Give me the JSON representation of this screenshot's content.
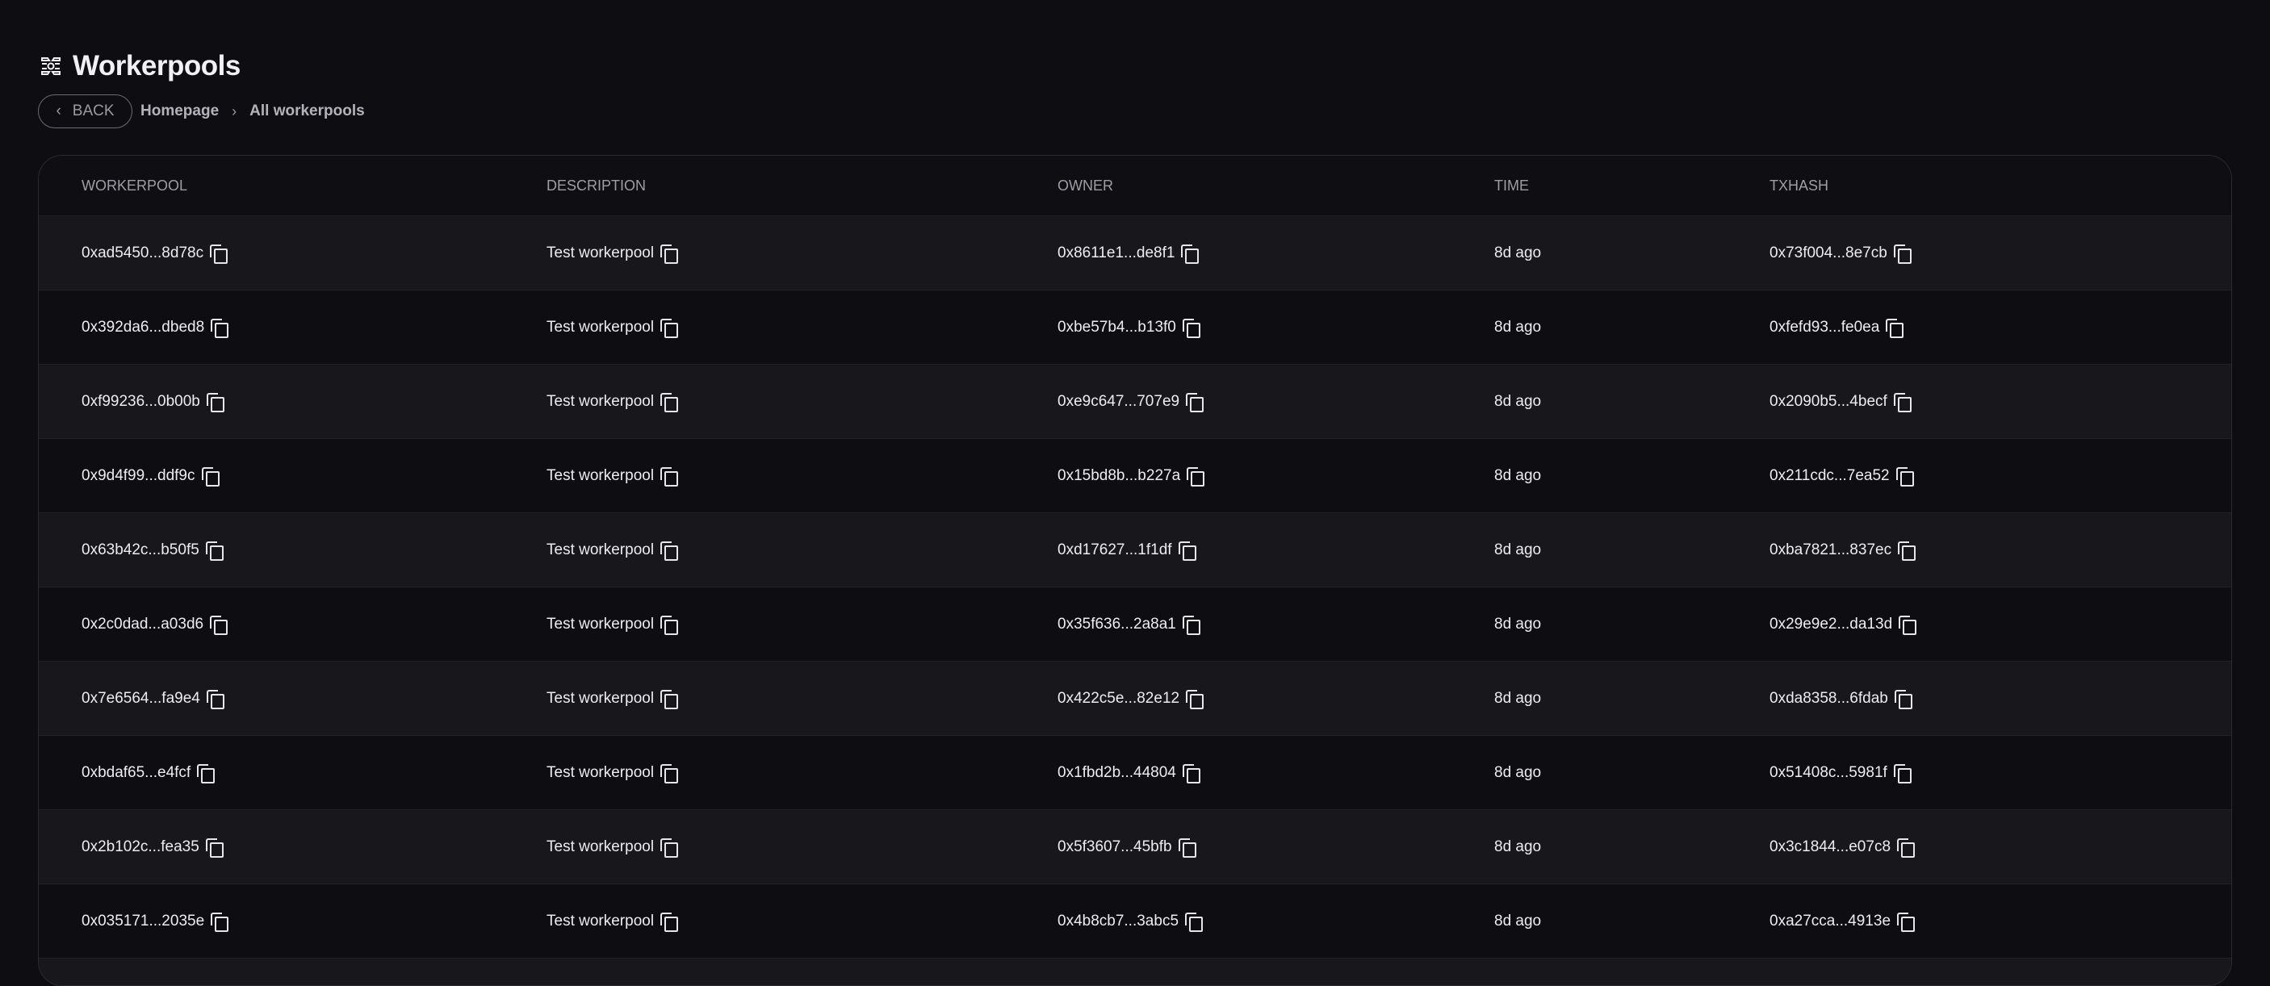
{
  "header": {
    "title": "Workerpools",
    "icon": "workerpool-icon"
  },
  "breadcrumb": {
    "back_label": "BACK",
    "items": [
      "Homepage",
      "All workerpools"
    ]
  },
  "table": {
    "columns": [
      "WORKERPOOL",
      "DESCRIPTION",
      "OWNER",
      "TIME",
      "TXHASH"
    ],
    "rows": [
      {
        "workerpool": "0xad5450...8d78c",
        "description": "Test workerpool",
        "owner": "0x8611e1...de8f1",
        "time": "8d ago",
        "txhash": "0x73f004...8e7cb"
      },
      {
        "workerpool": "0x392da6...dbed8",
        "description": "Test workerpool",
        "owner": "0xbe57b4...b13f0",
        "time": "8d ago",
        "txhash": "0xfefd93...fe0ea"
      },
      {
        "workerpool": "0xf99236...0b00b",
        "description": "Test workerpool",
        "owner": "0xe9c647...707e9",
        "time": "8d ago",
        "txhash": "0x2090b5...4becf"
      },
      {
        "workerpool": "0x9d4f99...ddf9c",
        "description": "Test workerpool",
        "owner": "0x15bd8b...b227a",
        "time": "8d ago",
        "txhash": "0x211cdc...7ea52"
      },
      {
        "workerpool": "0x63b42c...b50f5",
        "description": "Test workerpool",
        "owner": "0xd17627...1f1df",
        "time": "8d ago",
        "txhash": "0xba7821...837ec"
      },
      {
        "workerpool": "0x2c0dad...a03d6",
        "description": "Test workerpool",
        "owner": "0x35f636...2a8a1",
        "time": "8d ago",
        "txhash": "0x29e9e2...da13d"
      },
      {
        "workerpool": "0x7e6564...fa9e4",
        "description": "Test workerpool",
        "owner": "0x422c5e...82e12",
        "time": "8d ago",
        "txhash": "0xda8358...6fdab"
      },
      {
        "workerpool": "0xbdaf65...e4fcf",
        "description": "Test workerpool",
        "owner": "0x1fbd2b...44804",
        "time": "8d ago",
        "txhash": "0x51408c...5981f"
      },
      {
        "workerpool": "0x2b102c...fea35",
        "description": "Test workerpool",
        "owner": "0x5f3607...45bfb",
        "time": "8d ago",
        "txhash": "0x3c1844...e07c8"
      },
      {
        "workerpool": "0x035171...2035e",
        "description": "Test workerpool",
        "owner": "0x4b8cb7...3abc5",
        "time": "8d ago",
        "txhash": "0xa27cca...4913e"
      }
    ]
  }
}
